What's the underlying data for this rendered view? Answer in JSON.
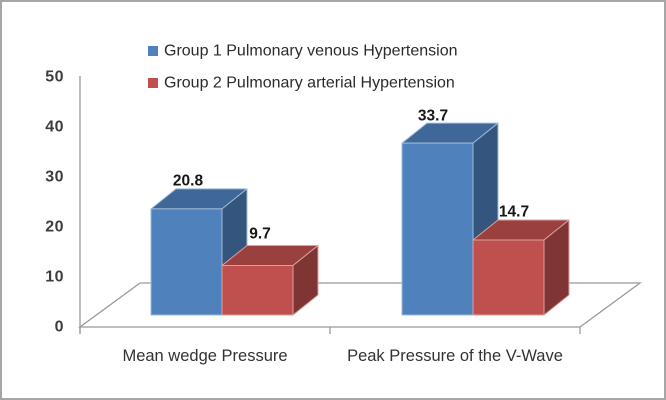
{
  "chart_data": {
    "type": "bar",
    "variant": "3d-column",
    "title": "",
    "xlabel": "",
    "ylabel": "",
    "categories": [
      "Mean wedge Pressure",
      "Peak Pressure of the V-Wave"
    ],
    "series": [
      {
        "name": "Group 1 Pulmonary venous Hypertension",
        "color": "#4F81BD",
        "values": [
          20.8,
          33.7
        ]
      },
      {
        "name": "Group 2 Pulmonary arterial Hypertension",
        "color": "#C0504D",
        "values": [
          9.7,
          14.7
        ]
      }
    ],
    "data_labels": {
      "show": true,
      "values": [
        "20.8",
        "9.7",
        "33.7",
        "14.7"
      ]
    },
    "yticks": [
      0,
      10,
      20,
      30,
      40,
      50
    ],
    "ylim": [
      0,
      50
    ],
    "grid": false,
    "legend_position": "top-center"
  },
  "colors": {
    "background": "#ffffff",
    "frame_border": "#a6a6a6",
    "axis_line": "#9a9a9a",
    "axis_text": "#3d3d3d",
    "category_text": "#333333",
    "data_label_text": "#161616",
    "series1": "#4F81BD",
    "series2": "#C0504D"
  }
}
